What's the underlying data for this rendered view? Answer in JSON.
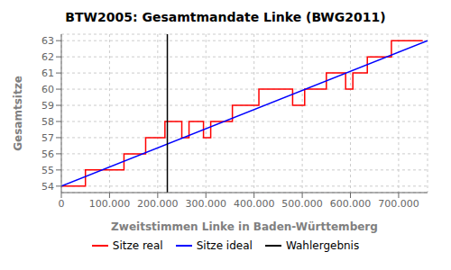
{
  "chart_data": {
    "type": "line",
    "title": "BTW2005: Gesamtmandate Linke (BWG2011)",
    "x_label": "Zweitstimmen Linke in Baden-Württemberg",
    "y_label": "Gesamtsitze",
    "xlim": [
      0,
      760000
    ],
    "ylim": [
      53.6,
      63.4
    ],
    "xticks": [
      0,
      {
        "value": 100000,
        "label": "100.000"
      },
      {
        "value": 200000,
        "label": "200.000"
      },
      {
        "value": 300000,
        "label": "300.000"
      },
      {
        "value": 400000,
        "label": "400.000"
      },
      {
        "value": 500000,
        "label": "500.000"
      },
      {
        "value": 600000,
        "label": "600.000"
      },
      {
        "value": 700000,
        "label": "700.000"
      }
    ],
    "yticks": [
      54,
      55,
      56,
      57,
      58,
      59,
      60,
      61,
      62,
      63
    ],
    "grid": true,
    "legend": "bottom",
    "series": [
      {
        "name": "Sitze real",
        "color": "red",
        "x": [
          0,
          50000,
          50000,
          130000,
          130000,
          175000,
          175000,
          215000,
          215000,
          250000,
          250000,
          265000,
          265000,
          295000,
          295000,
          310000,
          310000,
          355000,
          355000,
          410000,
          410000,
          480000,
          480000,
          505000,
          505000,
          550000,
          550000,
          590000,
          590000,
          605000,
          605000,
          635000,
          635000,
          685000,
          685000,
          750000
        ],
        "values": [
          54,
          54,
          55,
          55,
          56,
          56,
          57,
          57,
          58,
          58,
          57,
          57,
          58,
          58,
          57,
          57,
          58,
          58,
          59,
          59,
          60,
          60,
          59,
          59,
          60,
          60,
          61,
          61,
          60,
          60,
          61,
          61,
          62,
          62,
          63,
          63
        ]
      },
      {
        "name": "Sitze ideal",
        "color": "blue",
        "x": [
          0,
          760000
        ],
        "values": [
          54.0,
          63.0
        ]
      },
      {
        "name": "Wahlergebnis",
        "color": "black",
        "type": "vline",
        "x": [
          220000
        ]
      }
    ]
  }
}
